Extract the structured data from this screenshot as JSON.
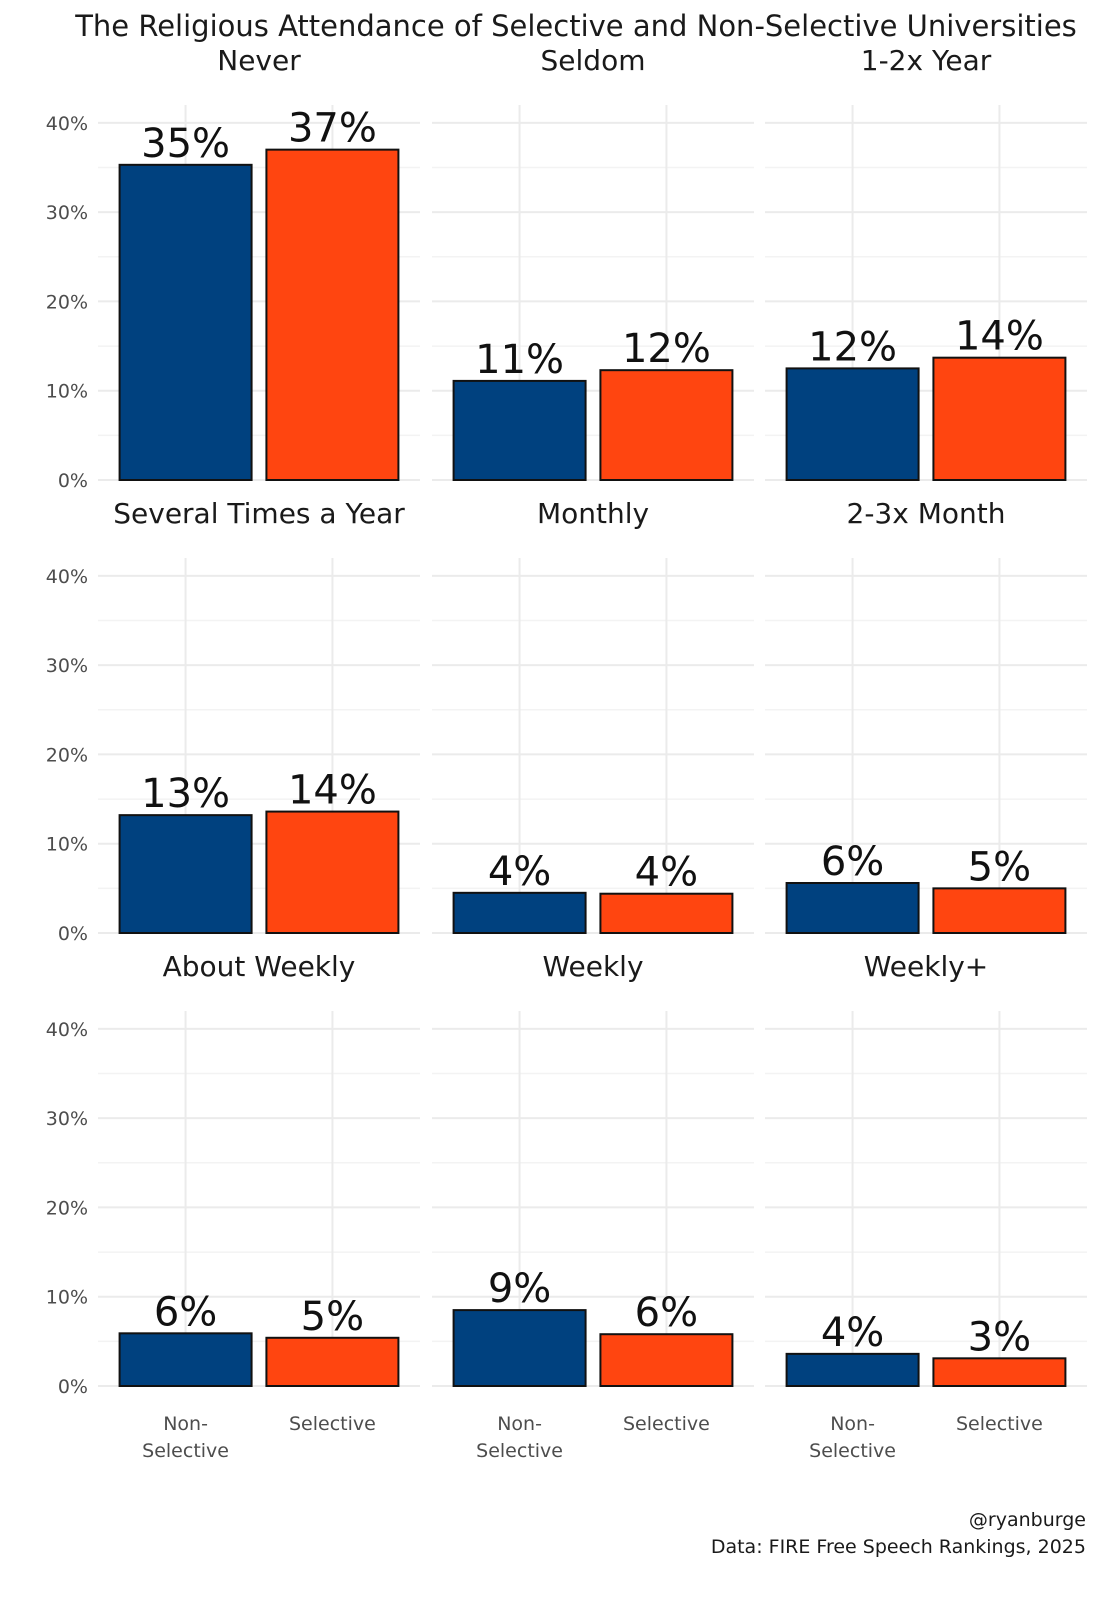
{
  "chart_data": {
    "type": "bar",
    "title": "The Religious Attendance of Selective and Non-Selective Universities",
    "categories": [
      "Non-Selective",
      "Selective"
    ],
    "category_tick_lines": [
      [
        "Non-",
        "Selective"
      ],
      [
        "Selective"
      ]
    ],
    "colors": {
      "Non-Selective": "#00417f",
      "Selective": "#ff4510"
    },
    "ylim": [
      0,
      0.42
    ],
    "yticks": [
      0,
      0.1,
      0.2,
      0.3,
      0.4
    ],
    "ytick_labels": [
      "0%",
      "10%",
      "20%",
      "30%",
      "40%"
    ],
    "xlabel": "",
    "ylabel": "",
    "grid": true,
    "legend": "none",
    "facets": [
      {
        "name": "Never",
        "values": [
          0.353,
          0.37
        ],
        "labels": [
          "35%",
          "37%"
        ]
      },
      {
        "name": "Seldom",
        "values": [
          0.111,
          0.123
        ],
        "labels": [
          "11%",
          "12%"
        ]
      },
      {
        "name": "1-2x Year",
        "values": [
          0.125,
          0.137
        ],
        "labels": [
          "12%",
          "14%"
        ]
      },
      {
        "name": "Several Times a Year",
        "values": [
          0.132,
          0.136
        ],
        "labels": [
          "13%",
          "14%"
        ]
      },
      {
        "name": "Monthly",
        "values": [
          0.045,
          0.044
        ],
        "labels": [
          "4%",
          "4%"
        ]
      },
      {
        "name": "2-3x Month",
        "values": [
          0.056,
          0.05
        ],
        "labels": [
          "6%",
          "5%"
        ]
      },
      {
        "name": "About Weekly",
        "values": [
          0.059,
          0.054
        ],
        "labels": [
          "6%",
          "5%"
        ]
      },
      {
        "name": "Weekly",
        "values": [
          0.085,
          0.058
        ],
        "labels": [
          "9%",
          "6%"
        ]
      },
      {
        "name": "Weekly+",
        "values": [
          0.036,
          0.031
        ],
        "labels": [
          "4%",
          "3%"
        ]
      }
    ],
    "caption": [
      "@ryanburge",
      "Data: FIRE Free Speech Rankings, 2025"
    ]
  }
}
